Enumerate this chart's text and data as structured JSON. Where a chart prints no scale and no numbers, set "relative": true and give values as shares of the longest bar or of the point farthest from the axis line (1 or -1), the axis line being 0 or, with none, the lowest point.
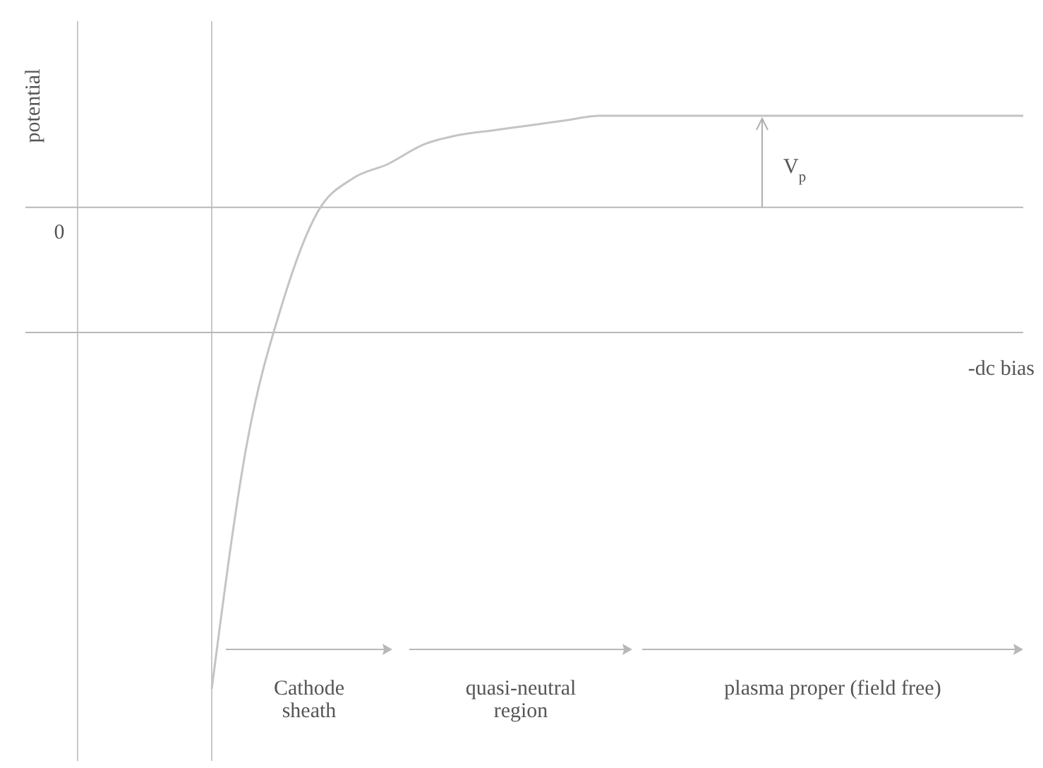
{
  "chart_data": {
    "type": "line",
    "relative": true,
    "categories": [
      null,
      null,
      null,
      null,
      null,
      null,
      null,
      null,
      null,
      null,
      null,
      null,
      null,
      null,
      null,
      null,
      null,
      null,
      null,
      null,
      null,
      null,
      null,
      null
    ],
    "series": [
      {
        "color": "#c4c4c4",
        "values": [
          -1,
          -0.49,
          -0.2,
          -0.01,
          0.06,
          0.09,
          0.13,
          0.15,
          0.16,
          0.17,
          0.18,
          0.19,
          0.19,
          0.19,
          0.19,
          0.19,
          0.19,
          0.19,
          0.19,
          0.19,
          0.19,
          0.19,
          0.19,
          0.19
        ]
      }
    ],
    "ref_lines": [
      {
        "axis": "y",
        "value": -0.26,
        "label": "-dc bias",
        "color": "#b8b8b8"
      }
    ],
    "annotations": [
      "0",
      "potential",
      {
        "text": "V$_{p}$",
        "y": 0.19
      },
      "Cathode sheath",
      "quasi-neutral region",
      "plasma proper (field free)"
    ],
    "marker": "none",
    "line_style": "solid"
  }
}
